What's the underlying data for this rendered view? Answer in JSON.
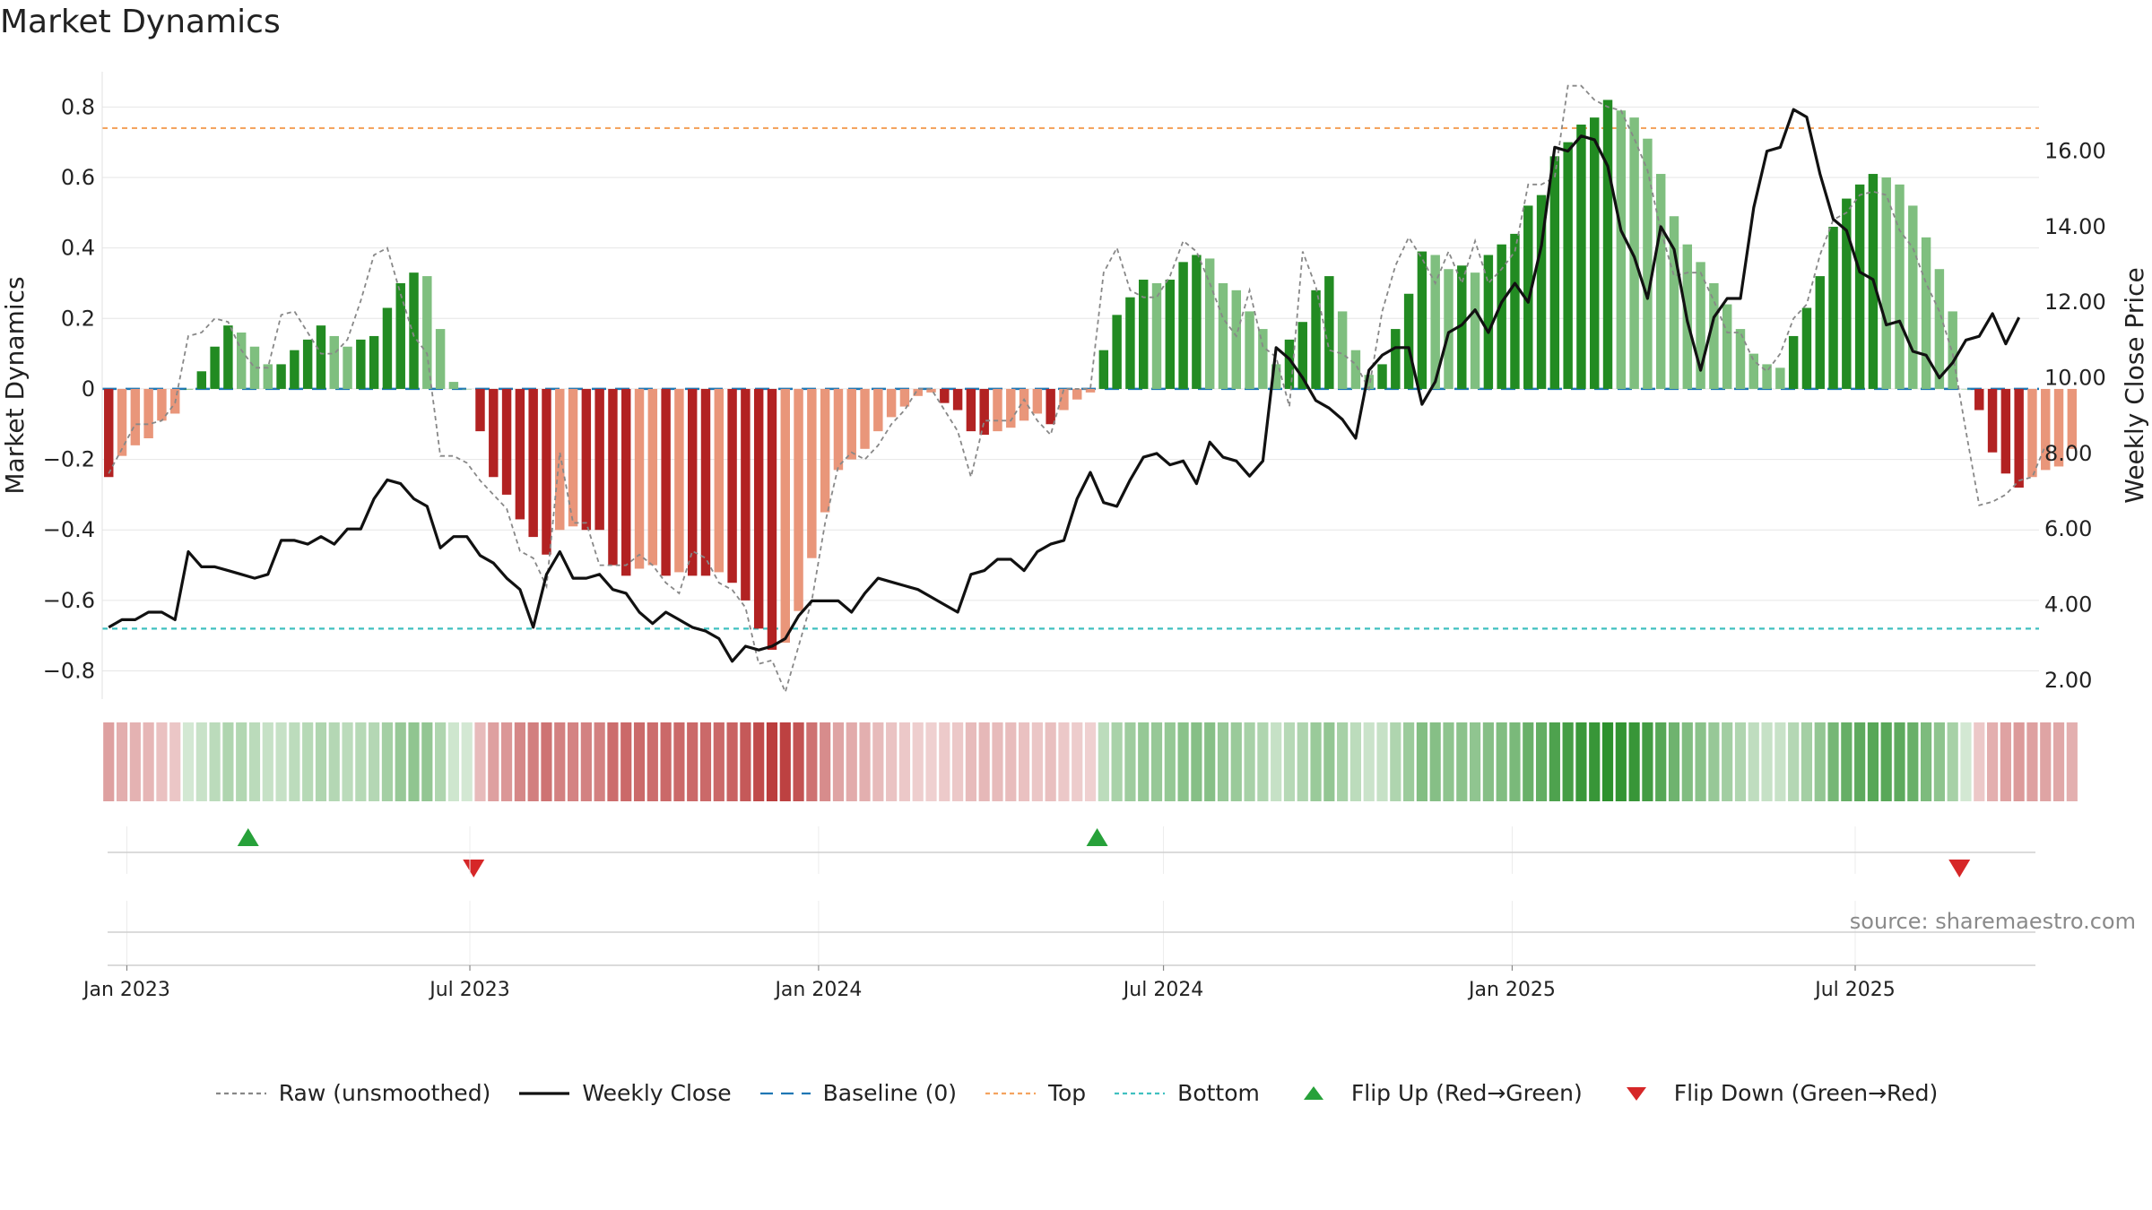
{
  "chart_data": {
    "type": "bar",
    "title": "Market Dynamics",
    "ylabel": "Market Dynamics",
    "y2label": "Weekly Close Price",
    "ylim": [
      -0.88,
      0.9
    ],
    "y2lim": [
      1.5,
      18.1
    ],
    "yticks": [
      "0.8",
      "0.6",
      "0.4",
      "0.2",
      "0",
      "−0.2",
      "−0.4",
      "−0.6",
      "−0.8"
    ],
    "ytick_values": [
      0.8,
      0.6,
      0.4,
      0.2,
      0,
      -0.2,
      -0.4,
      -0.6,
      -0.8
    ],
    "y2ticks": [
      "16.00",
      "14.00",
      "12.00",
      "10.00",
      "8.00",
      "6.00",
      "4.00",
      "2.00"
    ],
    "y2tick_values": [
      16,
      14,
      12,
      10,
      8,
      6,
      4,
      2
    ],
    "xticks": [
      "Jan 2023",
      "Jul 2023",
      "Jan 2024",
      "Jul 2024",
      "Jan 2025",
      "Jul 2025"
    ],
    "xtick_dates": [
      "2023-01-01",
      "2023-07-01",
      "2024-01-01",
      "2024-07-01",
      "2025-01-01",
      "2025-07-01"
    ],
    "x_range": [
      "2022-12-19",
      "2025-10-06"
    ],
    "first_week": "2022-12-19",
    "top_line": 0.74,
    "bottom_line": -0.68,
    "baseline": 0,
    "grid": true,
    "legend_position": "bottom",
    "series": [
      {
        "name": "Market Dynamics",
        "values": [
          -0.25,
          -0.19,
          -0.16,
          -0.14,
          -0.09,
          -0.07,
          0.0,
          0.05,
          0.12,
          0.18,
          0.16,
          0.12,
          0.07,
          0.07,
          0.11,
          0.14,
          0.18,
          0.15,
          0.12,
          0.14,
          0.15,
          0.23,
          0.3,
          0.33,
          0.32,
          0.17,
          0.02,
          0.0,
          -0.12,
          -0.25,
          -0.3,
          -0.37,
          -0.42,
          -0.47,
          -0.4,
          -0.39,
          -0.4,
          -0.4,
          -0.5,
          -0.53,
          -0.51,
          -0.5,
          -0.53,
          -0.52,
          -0.53,
          -0.53,
          -0.52,
          -0.55,
          -0.6,
          -0.68,
          -0.74,
          -0.72,
          -0.63,
          -0.48,
          -0.35,
          -0.23,
          -0.2,
          -0.17,
          -0.12,
          -0.08,
          -0.05,
          -0.02,
          -0.01,
          -0.04,
          -0.06,
          -0.12,
          -0.13,
          -0.12,
          -0.11,
          -0.09,
          -0.07,
          -0.1,
          -0.06,
          -0.03,
          -0.01,
          0.11,
          0.21,
          0.26,
          0.31,
          0.3,
          0.31,
          0.36,
          0.38,
          0.37,
          0.3,
          0.28,
          0.22,
          0.17,
          0.07,
          0.14,
          0.19,
          0.28,
          0.32,
          0.22,
          0.11,
          0.04,
          0.07,
          0.17,
          0.27,
          0.39,
          0.38,
          0.34,
          0.35,
          0.33,
          0.38,
          0.41,
          0.44,
          0.52,
          0.55,
          0.66,
          0.7,
          0.75,
          0.77,
          0.82,
          0.79,
          0.77,
          0.71,
          0.61,
          0.49,
          0.41,
          0.36,
          0.3,
          0.24,
          0.17,
          0.1,
          0.07,
          0.06,
          0.15,
          0.23,
          0.32,
          0.46,
          0.54,
          0.58,
          0.61,
          0.6,
          0.58,
          0.52,
          0.43,
          0.34,
          0.22,
          0.0,
          -0.06,
          -0.18,
          -0.24,
          -0.28,
          -0.25,
          -0.23,
          -0.22,
          -0.17
        ]
      },
      {
        "name": "Raw (unsmoothed)",
        "values": [
          -0.24,
          -0.17,
          -0.1,
          -0.1,
          -0.09,
          -0.04,
          0.15,
          0.16,
          0.2,
          0.19,
          0.11,
          0.06,
          0.06,
          0.21,
          0.22,
          0.16,
          0.1,
          0.1,
          0.14,
          0.25,
          0.38,
          0.4,
          0.27,
          0.15,
          0.1,
          -0.19,
          -0.19,
          -0.21,
          -0.26,
          -0.3,
          -0.34,
          -0.46,
          -0.48,
          -0.56,
          -0.18,
          -0.38,
          -0.38,
          -0.5,
          -0.5,
          -0.5,
          -0.47,
          -0.5,
          -0.55,
          -0.58,
          -0.46,
          -0.48,
          -0.55,
          -0.57,
          -0.62,
          -0.78,
          -0.77,
          -0.86,
          -0.73,
          -0.6,
          -0.38,
          -0.22,
          -0.18,
          -0.2,
          -0.16,
          -0.1,
          -0.06,
          0.0,
          0.0,
          -0.06,
          -0.12,
          -0.25,
          -0.09,
          -0.09,
          -0.09,
          -0.03,
          -0.09,
          -0.13,
          -0.0,
          0.0,
          0.0,
          0.33,
          0.4,
          0.28,
          0.26,
          0.26,
          0.32,
          0.42,
          0.39,
          0.3,
          0.2,
          0.15,
          0.28,
          0.12,
          0.09,
          -0.05,
          0.39,
          0.29,
          0.11,
          0.1,
          0.07,
          0.0,
          0.22,
          0.35,
          0.43,
          0.37,
          0.3,
          0.39,
          0.3,
          0.42,
          0.3,
          0.34,
          0.39,
          0.58,
          0.58,
          0.6,
          0.86,
          0.86,
          0.82,
          0.8,
          0.79,
          0.71,
          0.62,
          0.45,
          0.32,
          0.33,
          0.33,
          0.25,
          0.16,
          0.16,
          0.08,
          0.05,
          0.1,
          0.2,
          0.24,
          0.38,
          0.48,
          0.5,
          0.55,
          0.56,
          0.55,
          0.45,
          0.4,
          0.3,
          0.22,
          0.1,
          -0.12,
          -0.33,
          -0.32,
          -0.3,
          -0.26,
          -0.25,
          -0.16
        ]
      },
      {
        "name": "Weekly Close",
        "values": [
          3.4,
          3.6,
          3.6,
          3.8,
          3.8,
          3.6,
          5.4,
          5.0,
          5.0,
          4.9,
          4.8,
          4.7,
          4.8,
          5.7,
          5.7,
          5.6,
          5.8,
          5.6,
          6.0,
          6.0,
          6.8,
          7.3,
          7.2,
          6.8,
          6.6,
          5.5,
          5.8,
          5.8,
          5.3,
          5.1,
          4.7,
          4.4,
          3.4,
          4.8,
          5.4,
          4.7,
          4.7,
          4.8,
          4.4,
          4.3,
          3.8,
          3.5,
          3.8,
          3.6,
          3.4,
          3.3,
          3.1,
          2.5,
          2.9,
          2.8,
          2.9,
          3.1,
          3.7,
          4.1,
          4.1,
          4.1,
          3.8,
          4.3,
          4.7,
          4.6,
          4.5,
          4.4,
          4.2,
          4.0,
          3.8,
          4.8,
          4.9,
          5.2,
          5.2,
          4.9,
          5.4,
          5.6,
          5.7,
          6.8,
          7.5,
          6.7,
          6.6,
          7.3,
          7.9,
          8.0,
          7.7,
          7.8,
          7.2,
          8.3,
          7.9,
          7.8,
          7.4,
          7.8,
          10.8,
          10.5,
          10.0,
          9.4,
          9.2,
          8.9,
          8.4,
          10.2,
          10.6,
          10.8,
          10.8,
          9.3,
          9.9,
          11.2,
          11.4,
          11.8,
          11.2,
          12.0,
          12.5,
          12.0,
          13.5,
          16.1,
          16.0,
          16.4,
          16.3,
          15.6,
          13.9,
          13.2,
          12.1,
          14.0,
          13.4,
          11.5,
          10.2,
          11.6,
          12.1,
          12.1,
          14.5,
          16.0,
          16.1,
          17.1,
          16.9,
          15.4,
          14.2,
          13.9,
          12.8,
          12.6,
          11.4,
          11.5,
          10.7,
          10.6,
          10.0,
          10.4,
          11.0,
          11.1,
          11.7,
          10.9,
          11.6
        ]
      }
    ],
    "regime_strip": "Market Dynamics shaded by sign and magnitude",
    "flips": [
      {
        "direction": "up",
        "date": "2023-03-06",
        "label": "Flip Up (Red→Green)"
      },
      {
        "direction": "down",
        "date": "2023-07-03",
        "label": "Flip Down (Green→Red)"
      },
      {
        "direction": "up",
        "date": "2024-05-27",
        "label": "Flip Up (Red→Green)"
      },
      {
        "direction": "down",
        "date": "2025-08-25",
        "label": "Flip Down (Green→Red)"
      }
    ]
  },
  "colors": {
    "strong_green": "#228b22",
    "light_green": "#7fbf7f",
    "strong_red": "#b22222",
    "light_red": "#e9967a",
    "raw_line": "#888888",
    "close_line": "#111111",
    "baseline": "#1f77b4",
    "top": "#f4a460",
    "bottom": "#40c0c0",
    "flip_up": "#27a13a",
    "flip_down": "#d62728",
    "grid": "#e6e6e6"
  },
  "source": "source: sharemaestro.com",
  "legend": [
    {
      "label": "Raw (unsmoothed)",
      "kind": "dashed",
      "color": "#888888"
    },
    {
      "label": "Weekly Close",
      "kind": "solid",
      "color": "#111111"
    },
    {
      "label": "Baseline (0)",
      "kind": "longdash",
      "color": "#1f77b4"
    },
    {
      "label": "Top",
      "kind": "dashed",
      "color": "#f4a460"
    },
    {
      "label": "Bottom",
      "kind": "dashed",
      "color": "#40c0c0"
    },
    {
      "label": "Flip Up (Red→Green)",
      "kind": "tri-up",
      "color": "#27a13a"
    },
    {
      "label": "Flip Down (Green→Red)",
      "kind": "tri-down",
      "color": "#d62728"
    }
  ]
}
